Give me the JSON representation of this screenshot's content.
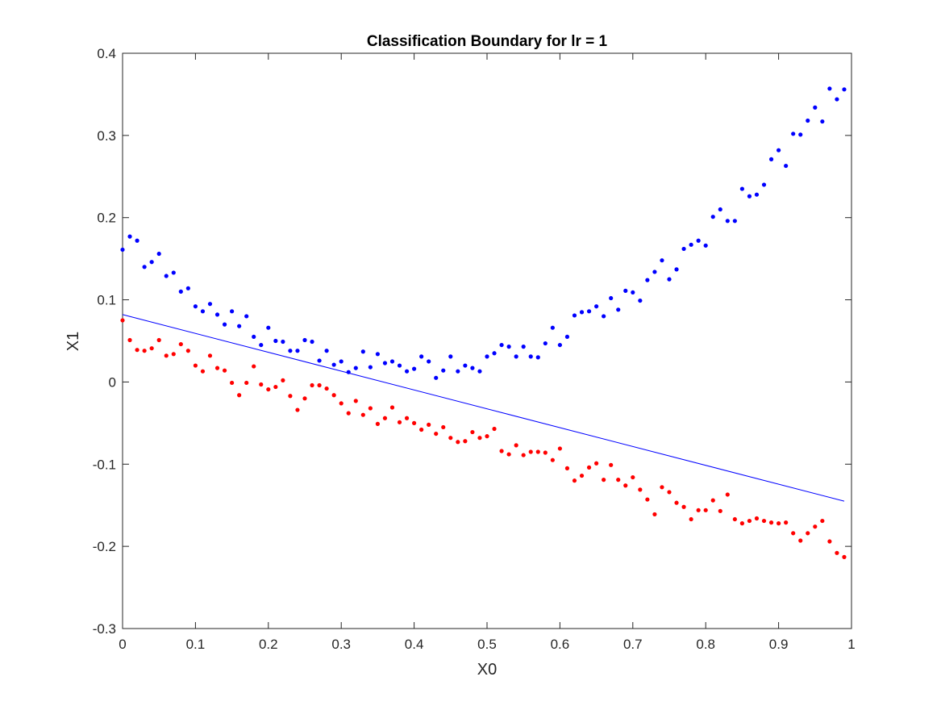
{
  "chart_data": {
    "type": "scatter",
    "title": "Classification Boundary for lr = 1",
    "xlabel": "X0",
    "ylabel": "X1",
    "xlim": [
      0,
      1
    ],
    "ylim": [
      -0.3,
      0.4
    ],
    "xticks": [
      0,
      0.1,
      0.2,
      0.3,
      0.4,
      0.5,
      0.6,
      0.7,
      0.8,
      0.9,
      1
    ],
    "xtick_labels": [
      "0",
      "0.1",
      "0.2",
      "0.3",
      "0.4",
      "0.5",
      "0.6",
      "0.7",
      "0.8",
      "0.9",
      "1"
    ],
    "yticks": [
      -0.3,
      -0.2,
      -0.1,
      0,
      0.1,
      0.2,
      0.3,
      0.4
    ],
    "ytick_labels": [
      "-0.3",
      "-0.2",
      "-0.1",
      "0",
      "0.1",
      "0.2",
      "0.3",
      "0.4"
    ],
    "grid": false,
    "series": [
      {
        "color": "#0000ff",
        "x": [
          0.0,
          0.01,
          0.02,
          0.03,
          0.04,
          0.05,
          0.06,
          0.07,
          0.08,
          0.09,
          0.1,
          0.11,
          0.12,
          0.13,
          0.14,
          0.15,
          0.16,
          0.17,
          0.18,
          0.19,
          0.2,
          0.21,
          0.22,
          0.23,
          0.24,
          0.25,
          0.26,
          0.27,
          0.28,
          0.29,
          0.3,
          0.31,
          0.32,
          0.33,
          0.34,
          0.35,
          0.36,
          0.37,
          0.38,
          0.39,
          0.4,
          0.41,
          0.42,
          0.43,
          0.44,
          0.45,
          0.46,
          0.47,
          0.48,
          0.49,
          0.5,
          0.51,
          0.52,
          0.53,
          0.54,
          0.55,
          0.56,
          0.57,
          0.58,
          0.59,
          0.6,
          0.61,
          0.62,
          0.63,
          0.64,
          0.65,
          0.66,
          0.67,
          0.68,
          0.69,
          0.7,
          0.71,
          0.72,
          0.73,
          0.74,
          0.75,
          0.76,
          0.77,
          0.78,
          0.79,
          0.8,
          0.81,
          0.82,
          0.83,
          0.84,
          0.85,
          0.86,
          0.87,
          0.88,
          0.89,
          0.9,
          0.91,
          0.92,
          0.93,
          0.94,
          0.95,
          0.96,
          0.97,
          0.98,
          0.99
        ],
        "y": [
          0.161,
          0.177,
          0.172,
          0.14,
          0.146,
          0.156,
          0.129,
          0.133,
          0.11,
          0.114,
          0.092,
          0.086,
          0.095,
          0.082,
          0.07,
          0.086,
          0.068,
          0.08,
          0.055,
          0.045,
          0.066,
          0.05,
          0.049,
          0.038,
          0.038,
          0.051,
          0.049,
          0.026,
          0.038,
          0.021,
          0.025,
          0.012,
          0.017,
          0.037,
          0.018,
          0.034,
          0.023,
          0.025,
          0.02,
          0.013,
          0.016,
          0.031,
          0.025,
          0.005,
          0.014,
          0.031,
          0.013,
          0.02,
          0.017,
          0.013,
          0.031,
          0.035,
          0.045,
          0.043,
          0.031,
          0.043,
          0.031,
          0.03,
          0.047,
          0.066,
          0.045,
          0.055,
          0.081,
          0.085,
          0.086,
          0.092,
          0.08,
          0.102,
          0.088,
          0.111,
          0.109,
          0.099,
          0.124,
          0.134,
          0.148,
          0.125,
          0.137,
          0.162,
          0.167,
          0.172,
          0.166,
          0.201,
          0.21,
          0.196,
          0.196,
          0.235,
          0.226,
          0.228,
          0.24,
          0.271,
          0.282,
          0.263,
          0.302,
          0.301,
          0.318,
          0.334,
          0.317,
          0.357,
          0.344,
          0.356
        ]
      },
      {
        "color": "#ff0000",
        "x": [
          0.0,
          0.01,
          0.02,
          0.03,
          0.04,
          0.05,
          0.06,
          0.07,
          0.08,
          0.09,
          0.1,
          0.11,
          0.12,
          0.13,
          0.14,
          0.15,
          0.16,
          0.17,
          0.18,
          0.19,
          0.2,
          0.21,
          0.22,
          0.23,
          0.24,
          0.25,
          0.26,
          0.27,
          0.28,
          0.29,
          0.3,
          0.31,
          0.32,
          0.33,
          0.34,
          0.35,
          0.36,
          0.37,
          0.38,
          0.39,
          0.4,
          0.41,
          0.42,
          0.43,
          0.44,
          0.45,
          0.46,
          0.47,
          0.48,
          0.49,
          0.5,
          0.51,
          0.52,
          0.53,
          0.54,
          0.55,
          0.56,
          0.57,
          0.58,
          0.59,
          0.6,
          0.61,
          0.62,
          0.63,
          0.64,
          0.65,
          0.66,
          0.67,
          0.68,
          0.69,
          0.7,
          0.71,
          0.72,
          0.73,
          0.74,
          0.75,
          0.76,
          0.77,
          0.78,
          0.79,
          0.8,
          0.81,
          0.82,
          0.83,
          0.84,
          0.85,
          0.86,
          0.87,
          0.88,
          0.89,
          0.9,
          0.91,
          0.92,
          0.93,
          0.94,
          0.95,
          0.96,
          0.97,
          0.98,
          0.99
        ],
        "y": [
          0.075,
          0.051,
          0.039,
          0.038,
          0.041,
          0.051,
          0.032,
          0.034,
          0.046,
          0.038,
          0.02,
          0.013,
          0.032,
          0.017,
          0.014,
          -0.001,
          -0.016,
          -0.001,
          0.019,
          -0.003,
          -0.009,
          -0.006,
          0.002,
          -0.017,
          -0.034,
          -0.02,
          -0.004,
          -0.004,
          -0.008,
          -0.016,
          -0.026,
          -0.038,
          -0.023,
          -0.04,
          -0.032,
          -0.051,
          -0.044,
          -0.031,
          -0.049,
          -0.044,
          -0.05,
          -0.058,
          -0.052,
          -0.063,
          -0.055,
          -0.068,
          -0.073,
          -0.072,
          -0.061,
          -0.068,
          -0.066,
          -0.057,
          -0.084,
          -0.088,
          -0.077,
          -0.089,
          -0.085,
          -0.085,
          -0.086,
          -0.095,
          -0.081,
          -0.105,
          -0.12,
          -0.114,
          -0.104,
          -0.099,
          -0.119,
          -0.101,
          -0.119,
          -0.126,
          -0.116,
          -0.131,
          -0.143,
          -0.161,
          -0.128,
          -0.134,
          -0.147,
          -0.152,
          -0.167,
          -0.156,
          -0.156,
          -0.144,
          -0.157,
          -0.137,
          -0.167,
          -0.172,
          -0.169,
          -0.166,
          -0.169,
          -0.171,
          -0.172,
          -0.171,
          -0.184,
          -0.193,
          -0.184,
          -0.176,
          -0.169,
          -0.194,
          -0.208,
          -0.213
        ]
      }
    ],
    "boundary_line": {
      "color": "#0000ff",
      "x": [
        0,
        0.99
      ],
      "y": [
        0.082,
        -0.145
      ]
    }
  }
}
